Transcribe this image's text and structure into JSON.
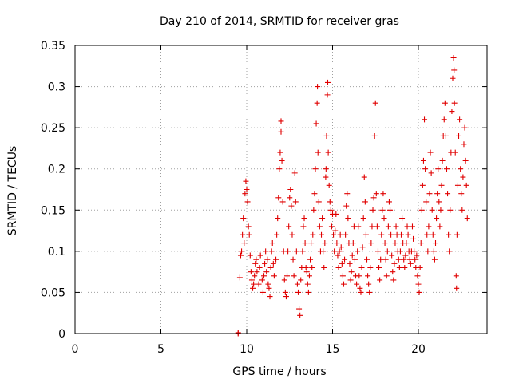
{
  "chart_data": {
    "type": "scatter",
    "title": "Day 210 of 2014, SRMTID for receiver gras",
    "xlabel": "GPS time / hours",
    "ylabel": "SRMTID / TECUs",
    "xlim": [
      0,
      24
    ],
    "ylim": [
      0,
      0.35
    ],
    "xticks": [
      0,
      5,
      10,
      15,
      20
    ],
    "xtick_labels": [
      "0",
      "5",
      "10",
      "15",
      "20"
    ],
    "yticks": [
      0,
      0.05,
      0.1,
      0.15,
      0.2,
      0.25,
      0.3,
      0.35
    ],
    "ytick_labels": [
      "0",
      "0.05",
      "0.1",
      "0.15",
      "0.2",
      "0.25",
      "0.3",
      "0.35"
    ],
    "grid": true,
    "marker": "plus",
    "color": "#e00000",
    "series": [
      {
        "name": "SRMTID",
        "points": [
          [
            9.5,
            0.0
          ],
          [
            9.5,
            0.001
          ],
          [
            9.6,
            0.068
          ],
          [
            9.65,
            0.095
          ],
          [
            9.7,
            0.1
          ],
          [
            9.75,
            0.12
          ],
          [
            9.8,
            0.14
          ],
          [
            9.85,
            0.11
          ],
          [
            9.9,
            0.17
          ],
          [
            9.95,
            0.185
          ],
          [
            10.0,
            0.175
          ],
          [
            10.05,
            0.16
          ],
          [
            10.1,
            0.13
          ],
          [
            10.15,
            0.12
          ],
          [
            10.2,
            0.095
          ],
          [
            10.25,
            0.075
          ],
          [
            10.3,
            0.065
          ],
          [
            10.35,
            0.055
          ],
          [
            10.4,
            0.06
          ],
          [
            10.45,
            0.07
          ],
          [
            10.5,
            0.085
          ],
          [
            10.55,
            0.09
          ],
          [
            10.6,
            0.075
          ],
          [
            10.7,
            0.06
          ],
          [
            10.75,
            0.08
          ],
          [
            10.8,
            0.095
          ],
          [
            10.9,
            0.065
          ],
          [
            10.95,
            0.05
          ],
          [
            11.0,
            0.07
          ],
          [
            11.05,
            0.085
          ],
          [
            11.1,
            0.1
          ],
          [
            11.15,
            0.075
          ],
          [
            11.2,
            0.09
          ],
          [
            11.25,
            0.06
          ],
          [
            11.3,
            0.055
          ],
          [
            11.35,
            0.045
          ],
          [
            11.4,
            0.08
          ],
          [
            11.45,
            0.1
          ],
          [
            11.5,
            0.11
          ],
          [
            11.55,
            0.085
          ],
          [
            11.6,
            0.07
          ],
          [
            11.7,
            0.09
          ],
          [
            11.75,
            0.12
          ],
          [
            11.8,
            0.14
          ],
          [
            11.85,
            0.165
          ],
          [
            11.9,
            0.2
          ],
          [
            11.95,
            0.22
          ],
          [
            12.0,
            0.245
          ],
          [
            12.0,
            0.258
          ],
          [
            12.05,
            0.21
          ],
          [
            12.1,
            0.16
          ],
          [
            12.15,
            0.1
          ],
          [
            12.2,
            0.065
          ],
          [
            12.25,
            0.05
          ],
          [
            12.3,
            0.045
          ],
          [
            12.35,
            0.07
          ],
          [
            12.4,
            0.1
          ],
          [
            12.45,
            0.13
          ],
          [
            12.5,
            0.165
          ],
          [
            12.55,
            0.175
          ],
          [
            12.6,
            0.155
          ],
          [
            12.65,
            0.12
          ],
          [
            12.7,
            0.09
          ],
          [
            12.75,
            0.07
          ],
          [
            12.8,
            0.195
          ],
          [
            12.85,
            0.16
          ],
          [
            12.9,
            0.1
          ],
          [
            12.95,
            0.06
          ],
          [
            13.0,
            0.05
          ],
          [
            13.05,
            0.03
          ],
          [
            13.1,
            0.022
          ],
          [
            13.15,
            0.065
          ],
          [
            13.2,
            0.08
          ],
          [
            13.25,
            0.1
          ],
          [
            13.3,
            0.13
          ],
          [
            13.35,
            0.14
          ],
          [
            13.4,
            0.11
          ],
          [
            13.45,
            0.08
          ],
          [
            13.5,
            0.075
          ],
          [
            13.55,
            0.06
          ],
          [
            13.6,
            0.05
          ],
          [
            13.65,
            0.07
          ],
          [
            13.7,
            0.09
          ],
          [
            13.75,
            0.11
          ],
          [
            13.8,
            0.08
          ],
          [
            13.85,
            0.12
          ],
          [
            13.9,
            0.15
          ],
          [
            13.95,
            0.17
          ],
          [
            14.0,
            0.2
          ],
          [
            14.05,
            0.255
          ],
          [
            14.1,
            0.28
          ],
          [
            14.12,
            0.3
          ],
          [
            14.15,
            0.22
          ],
          [
            14.2,
            0.16
          ],
          [
            14.25,
            0.13
          ],
          [
            14.3,
            0.1
          ],
          [
            14.35,
            0.12
          ],
          [
            14.4,
            0.14
          ],
          [
            14.45,
            0.1
          ],
          [
            14.5,
            0.08
          ],
          [
            14.55,
            0.11
          ],
          [
            14.6,
            0.19
          ],
          [
            14.62,
            0.2
          ],
          [
            14.65,
            0.24
          ],
          [
            14.7,
            0.29
          ],
          [
            14.72,
            0.305
          ],
          [
            14.75,
            0.22
          ],
          [
            14.8,
            0.18
          ],
          [
            14.85,
            0.16
          ],
          [
            14.9,
            0.15
          ],
          [
            14.95,
            0.13
          ],
          [
            15.0,
            0.145
          ],
          [
            15.05,
            0.12
          ],
          [
            15.1,
            0.1
          ],
          [
            15.15,
            0.125
          ],
          [
            15.2,
            0.145
          ],
          [
            15.25,
            0.11
          ],
          [
            15.3,
            0.095
          ],
          [
            15.35,
            0.08
          ],
          [
            15.4,
            0.1
          ],
          [
            15.45,
            0.12
          ],
          [
            15.5,
            0.105
          ],
          [
            15.55,
            0.085
          ],
          [
            15.6,
            0.07
          ],
          [
            15.65,
            0.06
          ],
          [
            15.7,
            0.09
          ],
          [
            15.75,
            0.12
          ],
          [
            15.8,
            0.155
          ],
          [
            15.85,
            0.17
          ],
          [
            15.9,
            0.14
          ],
          [
            15.95,
            0.11
          ],
          [
            16.0,
            0.085
          ],
          [
            16.05,
            0.065
          ],
          [
            16.1,
            0.075
          ],
          [
            16.15,
            0.095
          ],
          [
            16.2,
            0.11
          ],
          [
            16.25,
            0.13
          ],
          [
            16.3,
            0.09
          ],
          [
            16.35,
            0.07
          ],
          [
            16.4,
            0.06
          ],
          [
            16.45,
            0.1
          ],
          [
            16.5,
            0.13
          ],
          [
            16.55,
            0.07
          ],
          [
            16.6,
            0.055
          ],
          [
            16.65,
            0.05
          ],
          [
            16.7,
            0.08
          ],
          [
            16.75,
            0.105
          ],
          [
            16.8,
            0.14
          ],
          [
            16.85,
            0.19
          ],
          [
            16.9,
            0.16
          ],
          [
            16.95,
            0.12
          ],
          [
            17.0,
            0.09
          ],
          [
            17.05,
            0.07
          ],
          [
            17.1,
            0.06
          ],
          [
            17.15,
            0.05
          ],
          [
            17.2,
            0.08
          ],
          [
            17.25,
            0.11
          ],
          [
            17.3,
            0.13
          ],
          [
            17.35,
            0.15
          ],
          [
            17.4,
            0.165
          ],
          [
            17.45,
            0.24
          ],
          [
            17.5,
            0.28
          ],
          [
            17.55,
            0.17
          ],
          [
            17.6,
            0.13
          ],
          [
            17.65,
            0.1
          ],
          [
            17.7,
            0.08
          ],
          [
            17.75,
            0.065
          ],
          [
            17.8,
            0.09
          ],
          [
            17.85,
            0.12
          ],
          [
            17.9,
            0.15
          ],
          [
            17.95,
            0.17
          ],
          [
            18.0,
            0.14
          ],
          [
            18.05,
            0.11
          ],
          [
            18.1,
            0.09
          ],
          [
            18.15,
            0.07
          ],
          [
            18.2,
            0.1
          ],
          [
            18.25,
            0.13
          ],
          [
            18.3,
            0.16
          ],
          [
            18.35,
            0.15
          ],
          [
            18.4,
            0.12
          ],
          [
            18.45,
            0.095
          ],
          [
            18.5,
            0.075
          ],
          [
            18.55,
            0.065
          ],
          [
            18.6,
            0.085
          ],
          [
            18.65,
            0.11
          ],
          [
            18.7,
            0.13
          ],
          [
            18.75,
            0.12
          ],
          [
            18.8,
            0.1
          ],
          [
            18.85,
            0.09
          ],
          [
            18.9,
            0.08
          ],
          [
            18.95,
            0.1
          ],
          [
            19.0,
            0.12
          ],
          [
            19.05,
            0.14
          ],
          [
            19.1,
            0.11
          ],
          [
            19.15,
            0.09
          ],
          [
            19.2,
            0.08
          ],
          [
            19.25,
            0.095
          ],
          [
            19.3,
            0.11
          ],
          [
            19.35,
            0.13
          ],
          [
            19.4,
            0.12
          ],
          [
            19.45,
            0.1
          ],
          [
            19.5,
            0.09
          ],
          [
            19.55,
            0.085
          ],
          [
            19.6,
            0.1
          ],
          [
            19.65,
            0.13
          ],
          [
            19.7,
            0.115
          ],
          [
            19.75,
            0.1
          ],
          [
            19.8,
            0.09
          ],
          [
            19.85,
            0.08
          ],
          [
            19.9,
            0.095
          ],
          [
            19.95,
            0.07
          ],
          [
            20.0,
            0.06
          ],
          [
            20.05,
            0.05
          ],
          [
            20.1,
            0.08
          ],
          [
            20.15,
            0.11
          ],
          [
            20.2,
            0.15
          ],
          [
            20.25,
            0.18
          ],
          [
            20.3,
            0.21
          ],
          [
            20.35,
            0.26
          ],
          [
            20.4,
            0.2
          ],
          [
            20.45,
            0.16
          ],
          [
            20.5,
            0.12
          ],
          [
            20.55,
            0.1
          ],
          [
            20.6,
            0.13
          ],
          [
            20.65,
            0.17
          ],
          [
            20.7,
            0.22
          ],
          [
            20.75,
            0.195
          ],
          [
            20.8,
            0.15
          ],
          [
            20.85,
            0.12
          ],
          [
            20.9,
            0.1
          ],
          [
            20.95,
            0.09
          ],
          [
            21.0,
            0.11
          ],
          [
            21.05,
            0.14
          ],
          [
            21.1,
            0.17
          ],
          [
            21.15,
            0.2
          ],
          [
            21.2,
            0.16
          ],
          [
            21.25,
            0.13
          ],
          [
            21.3,
            0.15
          ],
          [
            21.35,
            0.18
          ],
          [
            21.4,
            0.21
          ],
          [
            21.45,
            0.24
          ],
          [
            21.5,
            0.26
          ],
          [
            21.55,
            0.28
          ],
          [
            21.6,
            0.24
          ],
          [
            21.65,
            0.2
          ],
          [
            21.7,
            0.17
          ],
          [
            21.75,
            0.12
          ],
          [
            21.8,
            0.1
          ],
          [
            21.85,
            0.15
          ],
          [
            21.9,
            0.22
          ],
          [
            21.95,
            0.27
          ],
          [
            22.0,
            0.31
          ],
          [
            22.05,
            0.335
          ],
          [
            22.08,
            0.32
          ],
          [
            22.1,
            0.28
          ],
          [
            22.15,
            0.22
          ],
          [
            22.2,
            0.07
          ],
          [
            22.22,
            0.055
          ],
          [
            22.25,
            0.12
          ],
          [
            22.3,
            0.18
          ],
          [
            22.35,
            0.24
          ],
          [
            22.4,
            0.26
          ],
          [
            22.45,
            0.2
          ],
          [
            22.5,
            0.17
          ],
          [
            22.55,
            0.15
          ],
          [
            22.6,
            0.19
          ],
          [
            22.65,
            0.23
          ],
          [
            22.7,
            0.25
          ],
          [
            22.75,
            0.21
          ],
          [
            22.8,
            0.18
          ],
          [
            22.85,
            0.14
          ]
        ]
      }
    ]
  }
}
